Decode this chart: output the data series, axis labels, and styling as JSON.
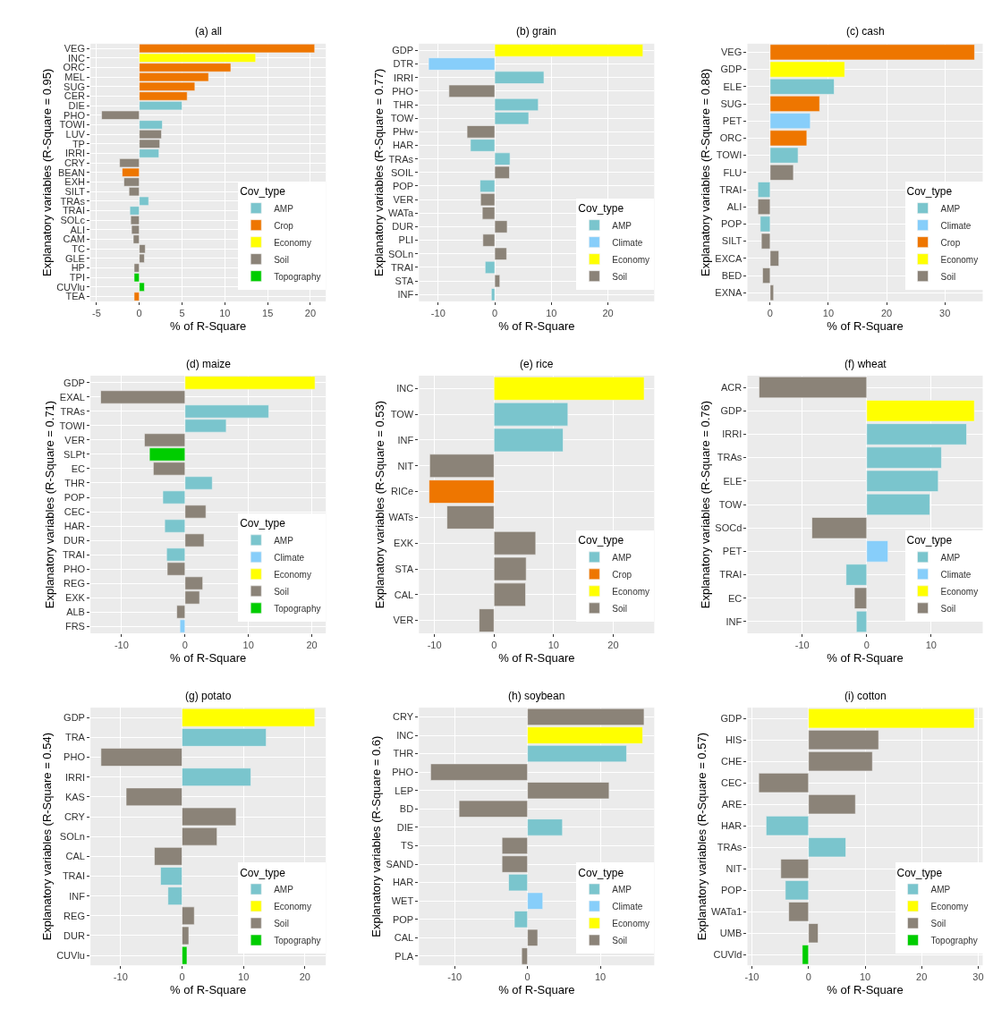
{
  "chart_data": [
    {
      "type": "bar",
      "orientation": "horizontal",
      "title": "(a) all",
      "xlabel": "% of R-Square",
      "ylabel": "Explanatory variables (R-Square = 0.95)",
      "legend_title": "Cov_type",
      "legend": "bottom right",
      "grid": true,
      "xlim": [
        -5.7,
        21.8
      ],
      "xticks": [
        -5,
        0,
        5,
        10,
        15,
        20
      ],
      "categories": [
        "VEG",
        "INC",
        "ORC",
        "MEL",
        "SUG",
        "CER",
        "DIE",
        "PHO",
        "TOWI",
        "LUV",
        "TP",
        "IRRI",
        "CRY",
        "BEAN",
        "EXH",
        "SILT",
        "TRAs",
        "TRAI",
        "SOLc",
        "ALI",
        "CAM",
        "TC",
        "GLE",
        "HP",
        "TPI",
        "CUVlu",
        "TEA"
      ],
      "series": [
        {
          "name": "AMP",
          "color": "#7ac5cd",
          "values": [
            null,
            null,
            null,
            null,
            null,
            null,
            5.0,
            null,
            2.7,
            null,
            null,
            2.3,
            null,
            null,
            null,
            null,
            1.1,
            -1.1,
            null,
            null,
            null,
            null,
            null,
            null,
            null,
            null,
            null
          ]
        },
        {
          "name": "Crop",
          "color": "#ee7600",
          "values": [
            20.5,
            null,
            10.7,
            8.1,
            6.5,
            5.6,
            null,
            null,
            null,
            null,
            null,
            null,
            null,
            -2.0,
            null,
            null,
            null,
            null,
            null,
            null,
            null,
            null,
            null,
            null,
            null,
            null,
            -0.6
          ]
        },
        {
          "name": "Economy",
          "color": "#ffff00",
          "values": [
            null,
            13.6,
            null,
            null,
            null,
            null,
            null,
            null,
            null,
            null,
            null,
            null,
            null,
            null,
            null,
            null,
            null,
            null,
            null,
            null,
            null,
            null,
            null,
            null,
            null,
            null,
            null
          ]
        },
        {
          "name": "Soil",
          "color": "#8b8378",
          "values": [
            null,
            null,
            null,
            null,
            null,
            null,
            null,
            -4.4,
            null,
            2.6,
            2.4,
            null,
            -2.3,
            null,
            -1.8,
            -1.2,
            null,
            null,
            -1.0,
            -0.9,
            -0.7,
            0.7,
            0.6,
            -0.6,
            null,
            null,
            null
          ]
        },
        {
          "name": "Topography",
          "color": "#00cd00",
          "values": [
            null,
            null,
            null,
            null,
            null,
            null,
            null,
            null,
            null,
            null,
            null,
            null,
            null,
            null,
            null,
            null,
            null,
            null,
            null,
            null,
            null,
            null,
            null,
            null,
            -0.6,
            0.6,
            null
          ]
        }
      ]
    },
    {
      "type": "bar",
      "orientation": "horizontal",
      "title": "(b) grain",
      "xlabel": "% of R-Square",
      "ylabel": "Explanatory variables (R-Square = 0.77)",
      "legend_title": "Cov_type",
      "legend": "bottom right",
      "grid": true,
      "xlim": [
        -13.4,
        28.2
      ],
      "xticks": [
        -10,
        0,
        10,
        20
      ],
      "categories": [
        "GDP",
        "DTR",
        "IRRI",
        "PHO",
        "THR",
        "TOW",
        "PHw",
        "HAR",
        "TRAs",
        "SOIL",
        "POP",
        "VER",
        "WATa",
        "DUR",
        "PLI",
        "SOLn",
        "TRAI",
        "STA",
        "INF"
      ],
      "series": [
        {
          "name": "AMP",
          "color": "#7ac5cd",
          "values": [
            null,
            null,
            8.7,
            null,
            7.7,
            6.0,
            null,
            -4.3,
            2.7,
            null,
            -2.6,
            null,
            null,
            null,
            null,
            null,
            -1.7,
            null,
            -0.6
          ]
        },
        {
          "name": "Climate",
          "color": "#87cefa",
          "values": [
            null,
            -11.7,
            null,
            null,
            null,
            null,
            null,
            null,
            null,
            null,
            null,
            null,
            null,
            null,
            null,
            null,
            null,
            null,
            null
          ]
        },
        {
          "name": "Economy",
          "color": "#ffff00",
          "values": [
            26.2,
            null,
            null,
            null,
            null,
            null,
            null,
            null,
            null,
            null,
            null,
            null,
            null,
            null,
            null,
            null,
            null,
            null,
            null
          ]
        },
        {
          "name": "Soil",
          "color": "#8b8378",
          "values": [
            null,
            null,
            null,
            -8.1,
            null,
            null,
            -4.9,
            null,
            null,
            2.6,
            null,
            -2.5,
            -2.2,
            2.2,
            -2.1,
            2.1,
            null,
            0.9,
            null
          ]
        }
      ]
    },
    {
      "type": "bar",
      "orientation": "horizontal",
      "title": "(c) cash",
      "xlabel": "% of R-Square",
      "ylabel": "Explanatory variables (R-Square = 0.88)",
      "legend_title": "Cov_type",
      "legend": "bottom right",
      "grid": true,
      "xlim": [
        -3.9,
        36.5
      ],
      "xticks": [
        0,
        10,
        20,
        30
      ],
      "categories": [
        "VEG",
        "GDP",
        "ELE",
        "SUG",
        "PET",
        "ORC",
        "TOWI",
        "FLU",
        "TRAI",
        "ALI",
        "POP",
        "SILT",
        "EXCA",
        "BED",
        "EXNA"
      ],
      "series": [
        {
          "name": "AMP",
          "color": "#7ac5cd",
          "values": [
            null,
            null,
            11.0,
            null,
            null,
            null,
            4.8,
            null,
            -2.1,
            null,
            -1.7,
            null,
            null,
            null,
            null
          ]
        },
        {
          "name": "Climate",
          "color": "#87cefa",
          "values": [
            null,
            null,
            null,
            null,
            6.9,
            null,
            null,
            null,
            null,
            null,
            null,
            null,
            null,
            null,
            null
          ]
        },
        {
          "name": "Crop",
          "color": "#ee7600",
          "values": [
            35.1,
            null,
            null,
            8.5,
            null,
            6.3,
            null,
            null,
            null,
            null,
            null,
            null,
            null,
            null,
            null
          ]
        },
        {
          "name": "Economy",
          "color": "#ffff00",
          "values": [
            null,
            12.8,
            null,
            null,
            null,
            null,
            null,
            null,
            null,
            null,
            null,
            null,
            null,
            null,
            null
          ]
        },
        {
          "name": "Soil",
          "color": "#8b8378",
          "values": [
            null,
            null,
            null,
            null,
            null,
            null,
            null,
            4.0,
            null,
            -2.1,
            null,
            -1.5,
            1.5,
            -1.3,
            0.6
          ]
        }
      ]
    },
    {
      "type": "bar",
      "orientation": "horizontal",
      "title": "(d) maize",
      "xlabel": "% of R-Square",
      "ylabel": "Explanatory variables (R-Square = 0.71)",
      "legend_title": "Cov_type",
      "legend": "bottom right",
      "grid": true,
      "xlim": [
        -14.9,
        22.2
      ],
      "xticks": [
        -10,
        0,
        10,
        20
      ],
      "categories": [
        "GDP",
        "EXAL",
        "TRAs",
        "TOWI",
        "VER",
        "SLPt",
        "EC",
        "THR",
        "POP",
        "CEC",
        "HAR",
        "DUR",
        "TRAI",
        "PHO",
        "REG",
        "EXK",
        "ALB",
        "FRS"
      ],
      "series": [
        {
          "name": "AMP",
          "color": "#7ac5cd",
          "values": [
            null,
            null,
            13.2,
            6.5,
            null,
            null,
            null,
            4.3,
            -3.5,
            null,
            -3.2,
            null,
            -2.9,
            null,
            null,
            null,
            null,
            null
          ]
        },
        {
          "name": "Climate",
          "color": "#87cefa",
          "values": [
            null,
            null,
            null,
            null,
            null,
            null,
            null,
            null,
            null,
            null,
            null,
            null,
            null,
            null,
            null,
            null,
            null,
            -0.8
          ]
        },
        {
          "name": "Economy",
          "color": "#ffff00",
          "values": [
            20.5,
            null,
            null,
            null,
            null,
            null,
            null,
            null,
            null,
            null,
            null,
            null,
            null,
            null,
            null,
            null,
            null,
            null
          ]
        },
        {
          "name": "Soil",
          "color": "#8b8378",
          "values": [
            null,
            -13.3,
            null,
            null,
            -6.4,
            null,
            -5.0,
            null,
            null,
            3.3,
            null,
            3.0,
            null,
            -2.8,
            2.8,
            2.3,
            -1.3,
            null
          ]
        },
        {
          "name": "Topography",
          "color": "#00cd00",
          "values": [
            null,
            null,
            null,
            null,
            null,
            -5.6,
            null,
            null,
            null,
            null,
            null,
            null,
            null,
            null,
            null,
            null,
            null,
            null
          ]
        }
      ]
    },
    {
      "type": "bar",
      "orientation": "horizontal",
      "title": "(e) rice",
      "xlabel": "% of R-Square",
      "ylabel": "Explanatory variables (R-Square = 0.53)",
      "legend_title": "Cov_type",
      "legend": "bottom right",
      "grid": true,
      "xlim": [
        -12.6,
        26.9
      ],
      "xticks": [
        -10,
        0,
        10,
        20
      ],
      "categories": [
        "INC",
        "TOW",
        "INF",
        "NIT",
        "RICe",
        "WATs",
        "EXK",
        "STA",
        "CAL",
        "VER"
      ],
      "series": [
        {
          "name": "AMP",
          "color": "#7ac5cd",
          "values": [
            null,
            12.4,
            11.6,
            null,
            null,
            null,
            null,
            null,
            null,
            null
          ]
        },
        {
          "name": "Crop",
          "color": "#ee7600",
          "values": [
            null,
            null,
            null,
            null,
            -10.9,
            null,
            null,
            null,
            null,
            null
          ]
        },
        {
          "name": "Economy",
          "color": "#ffff00",
          "values": [
            25.2,
            null,
            null,
            null,
            null,
            null,
            null,
            null,
            null,
            null
          ]
        },
        {
          "name": "Soil",
          "color": "#8b8378",
          "values": [
            null,
            null,
            null,
            -10.8,
            null,
            -7.9,
            7.0,
            5.4,
            5.3,
            -2.5
          ]
        }
      ]
    },
    {
      "type": "bar",
      "orientation": "horizontal",
      "title": "(f) wheat",
      "xlabel": "% of R-Square",
      "ylabel": "Explanatory variables (R-Square = 0.76)",
      "legend_title": "Cov_type",
      "legend": "bottom right",
      "grid": true,
      "xlim": [
        -18.5,
        18.0
      ],
      "xticks": [
        -10,
        0,
        10
      ],
      "categories": [
        "ACR",
        "GDP",
        "IRRI",
        "TRAs",
        "ELE",
        "TOW",
        "SOCd",
        "PET",
        "TRAI",
        "EC",
        "INF"
      ],
      "series": [
        {
          "name": "AMP",
          "color": "#7ac5cd",
          "values": [
            null,
            null,
            15.5,
            11.6,
            11.1,
            9.8,
            null,
            null,
            -3.2,
            null,
            -1.6
          ]
        },
        {
          "name": "Climate",
          "color": "#87cefa",
          "values": [
            null,
            null,
            null,
            null,
            null,
            null,
            null,
            3.3,
            null,
            null,
            null
          ]
        },
        {
          "name": "Economy",
          "color": "#ffff00",
          "values": [
            null,
            16.7,
            null,
            null,
            null,
            null,
            null,
            null,
            null,
            null,
            null
          ]
        },
        {
          "name": "Soil",
          "color": "#8b8378",
          "values": [
            -16.7,
            null,
            null,
            null,
            null,
            null,
            -8.5,
            null,
            null,
            -1.9,
            null
          ]
        }
      ]
    },
    {
      "type": "bar",
      "orientation": "horizontal",
      "title": "(g) potato",
      "xlabel": "% of R-Square",
      "ylabel": "Explanatory variables (R-Square = 0.54)",
      "legend_title": "Cov_type",
      "legend": "bottom right",
      "grid": true,
      "xlim": [
        -14.9,
        23.4
      ],
      "xticks": [
        -10,
        0,
        10,
        20
      ],
      "categories": [
        "GDP",
        "TRA",
        "PHO",
        "IRRI",
        "KAS",
        "CRY",
        "SOLn",
        "CAL",
        "TRAI",
        "INF",
        "REG",
        "DUR",
        "CUVlu"
      ],
      "series": [
        {
          "name": "AMP",
          "color": "#7ac5cd",
          "values": [
            null,
            13.7,
            null,
            11.2,
            null,
            null,
            null,
            null,
            -3.5,
            -2.3,
            null,
            null,
            null
          ]
        },
        {
          "name": "Economy",
          "color": "#ffff00",
          "values": [
            21.6,
            null,
            null,
            null,
            null,
            null,
            null,
            null,
            null,
            null,
            null,
            null,
            null
          ]
        },
        {
          "name": "Soil",
          "color": "#8b8378",
          "values": [
            null,
            null,
            -13.2,
            null,
            -9.1,
            8.8,
            5.7,
            -4.5,
            null,
            null,
            2.0,
            1.1,
            null
          ]
        },
        {
          "name": "Topography",
          "color": "#00cd00",
          "values": [
            null,
            null,
            null,
            null,
            null,
            null,
            null,
            null,
            null,
            null,
            null,
            null,
            0.8
          ]
        }
      ]
    },
    {
      "type": "bar",
      "orientation": "horizontal",
      "title": "(h) soybean",
      "xlabel": "% of R-Square",
      "ylabel": "Explanatory variables (R-Square = 0.6)",
      "legend_title": "Cov_type",
      "legend": "bottom right",
      "grid": true,
      "xlim": [
        -14.9,
        17.4
      ],
      "xticks": [
        -10,
        0,
        10
      ],
      "categories": [
        "CRY",
        "INC",
        "THR",
        "PHO",
        "LEP",
        "BD",
        "DIE",
        "TS",
        "SAND",
        "HAR",
        "WET",
        "POP",
        "CAL",
        "PLA"
      ],
      "series": [
        {
          "name": "AMP",
          "color": "#7ac5cd",
          "values": [
            null,
            null,
            13.6,
            null,
            null,
            null,
            4.8,
            null,
            null,
            -2.6,
            null,
            -1.8,
            null,
            null
          ]
        },
        {
          "name": "Climate",
          "color": "#87cefa",
          "values": [
            null,
            null,
            null,
            null,
            null,
            null,
            null,
            null,
            null,
            null,
            2.1,
            null,
            null,
            null
          ]
        },
        {
          "name": "Economy",
          "color": "#ffff00",
          "values": [
            null,
            15.8,
            null,
            null,
            null,
            null,
            null,
            null,
            null,
            null,
            null,
            null,
            null,
            null
          ]
        },
        {
          "name": "Soil",
          "color": "#8b8378",
          "values": [
            16.0,
            null,
            null,
            -13.3,
            11.2,
            -9.4,
            null,
            -3.5,
            -3.5,
            null,
            null,
            null,
            1.4,
            -0.8
          ]
        }
      ]
    },
    {
      "type": "bar",
      "orientation": "horizontal",
      "title": "(i) cotton",
      "xlabel": "% of R-Square",
      "ylabel": "Explanatory variables (R-Square = 0.57)",
      "legend_title": "Cov_type",
      "legend": "bottom right",
      "grid": true,
      "xlim": [
        -10.8,
        30.8
      ],
      "xticks": [
        -10,
        0,
        10,
        20,
        30
      ],
      "categories": [
        "GDP",
        "HIS",
        "CHE",
        "CEC",
        "ARE",
        "HAR",
        "TRAs",
        "NIT",
        "POP",
        "WATa1",
        "UMB",
        "CUVld"
      ],
      "series": [
        {
          "name": "AMP",
          "color": "#7ac5cd",
          "values": [
            null,
            null,
            null,
            null,
            null,
            -7.5,
            6.6,
            null,
            -4.1,
            null,
            null,
            null
          ]
        },
        {
          "name": "Economy",
          "color": "#ffff00",
          "values": [
            29.3,
            null,
            null,
            null,
            null,
            null,
            null,
            null,
            null,
            null,
            null,
            null
          ]
        },
        {
          "name": "Soil",
          "color": "#8b8378",
          "values": [
            null,
            12.4,
            11.3,
            -8.8,
            8.3,
            null,
            null,
            -4.9,
            null,
            -3.5,
            1.7,
            null
          ]
        },
        {
          "name": "Topography",
          "color": "#00cd00",
          "values": [
            null,
            null,
            null,
            null,
            null,
            null,
            null,
            null,
            null,
            null,
            null,
            -1.1
          ]
        }
      ]
    }
  ]
}
